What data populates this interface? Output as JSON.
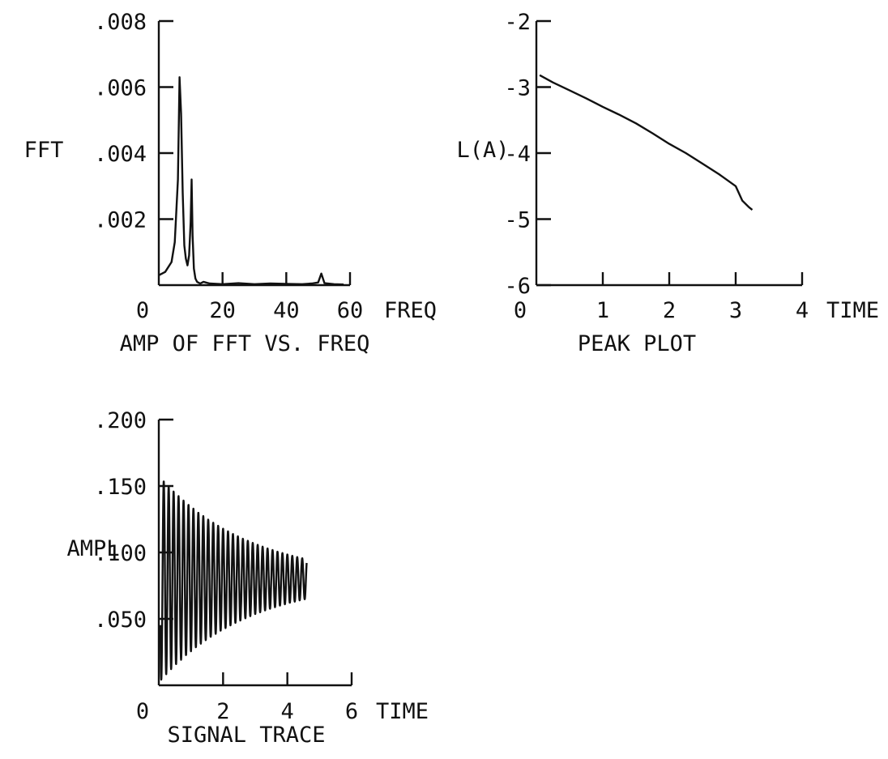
{
  "chart_data": [
    {
      "type": "line",
      "title": "AMP OF FFT VS. FREQ",
      "xlabel": "FREQ",
      "ylabel": "FFT",
      "xlim": [
        0,
        60
      ],
      "ylim": [
        0,
        0.008
      ],
      "x_ticks": [
        0,
        20,
        40,
        60
      ],
      "x_tick_labels": [
        "0",
        "20",
        "40",
        "60"
      ],
      "y_ticks": [
        0.002,
        0.004,
        0.006,
        0.008
      ],
      "y_tick_labels": [
        ".002",
        ".004",
        ".006",
        ".008"
      ],
      "grid": false,
      "series": [
        {
          "x": [
            0,
            2,
            4,
            5,
            6,
            6.5,
            7,
            7.5,
            8,
            8.5,
            9,
            9.5,
            10,
            10.3,
            10.6,
            11,
            11.5,
            12,
            13,
            14,
            16,
            20,
            25,
            30,
            35,
            40,
            45,
            48,
            50,
            51,
            52,
            55,
            58
          ],
          "y": [
            0.0003,
            0.0004,
            0.0007,
            0.0013,
            0.0032,
            0.0063,
            0.0052,
            0.0028,
            0.0012,
            0.0008,
            0.0006,
            0.0009,
            0.0019,
            0.0032,
            0.0015,
            0.0005,
            0.0002,
            0.0001,
            5e-05,
            0.0001,
            5e-05,
            3e-05,
            6e-05,
            3e-05,
            5e-05,
            4e-05,
            3e-05,
            5e-05,
            8e-05,
            0.00035,
            6e-05,
            3e-05,
            2e-05
          ]
        }
      ]
    },
    {
      "type": "line",
      "title": "PEAK PLOT",
      "xlabel": "TIME",
      "ylabel": "L(A)",
      "xlim": [
        0,
        4
      ],
      "ylim": [
        -6,
        -2
      ],
      "x_ticks": [
        0,
        1,
        2,
        3,
        4
      ],
      "x_tick_labels": [
        "0",
        "1",
        "2",
        "3",
        "4"
      ],
      "y_ticks": [
        -6,
        -5,
        -4,
        -3,
        -2
      ],
      "y_tick_labels": [
        "-6",
        "-5",
        "-4",
        "-3",
        "-2"
      ],
      "grid": false,
      "series": [
        {
          "x": [
            0.05,
            0.25,
            0.5,
            0.75,
            1.0,
            1.25,
            1.5,
            1.75,
            2.0,
            2.25,
            2.5,
            2.75,
            3.0,
            3.1,
            3.2,
            3.25
          ],
          "y": [
            -2.82,
            -2.93,
            -3.05,
            -3.17,
            -3.3,
            -3.42,
            -3.55,
            -3.7,
            -3.86,
            -4.0,
            -4.16,
            -4.32,
            -4.5,
            -4.72,
            -4.82,
            -4.86
          ]
        }
      ]
    },
    {
      "type": "line",
      "title": "SIGNAL TRACE",
      "xlabel": "TIME",
      "ylabel": "AMPL",
      "xlim": [
        0,
        6
      ],
      "ylim": [
        0,
        0.2
      ],
      "x_ticks": [
        0,
        2,
        4,
        6
      ],
      "x_tick_labels": [
        "0",
        "2",
        "4",
        "6"
      ],
      "y_ticks": [
        0.05,
        0.1,
        0.15,
        0.2
      ],
      "y_tick_labels": [
        ".050",
        ".100",
        ".150",
        ".200"
      ],
      "grid": false,
      "series": [
        {
          "equilibrium": 0.08,
          "initial_amplitude": 0.078,
          "decay_rate": 0.36,
          "cycles_per_unit_time": 6.5,
          "x_start": 0.05,
          "x_end": 4.6
        }
      ]
    }
  ]
}
